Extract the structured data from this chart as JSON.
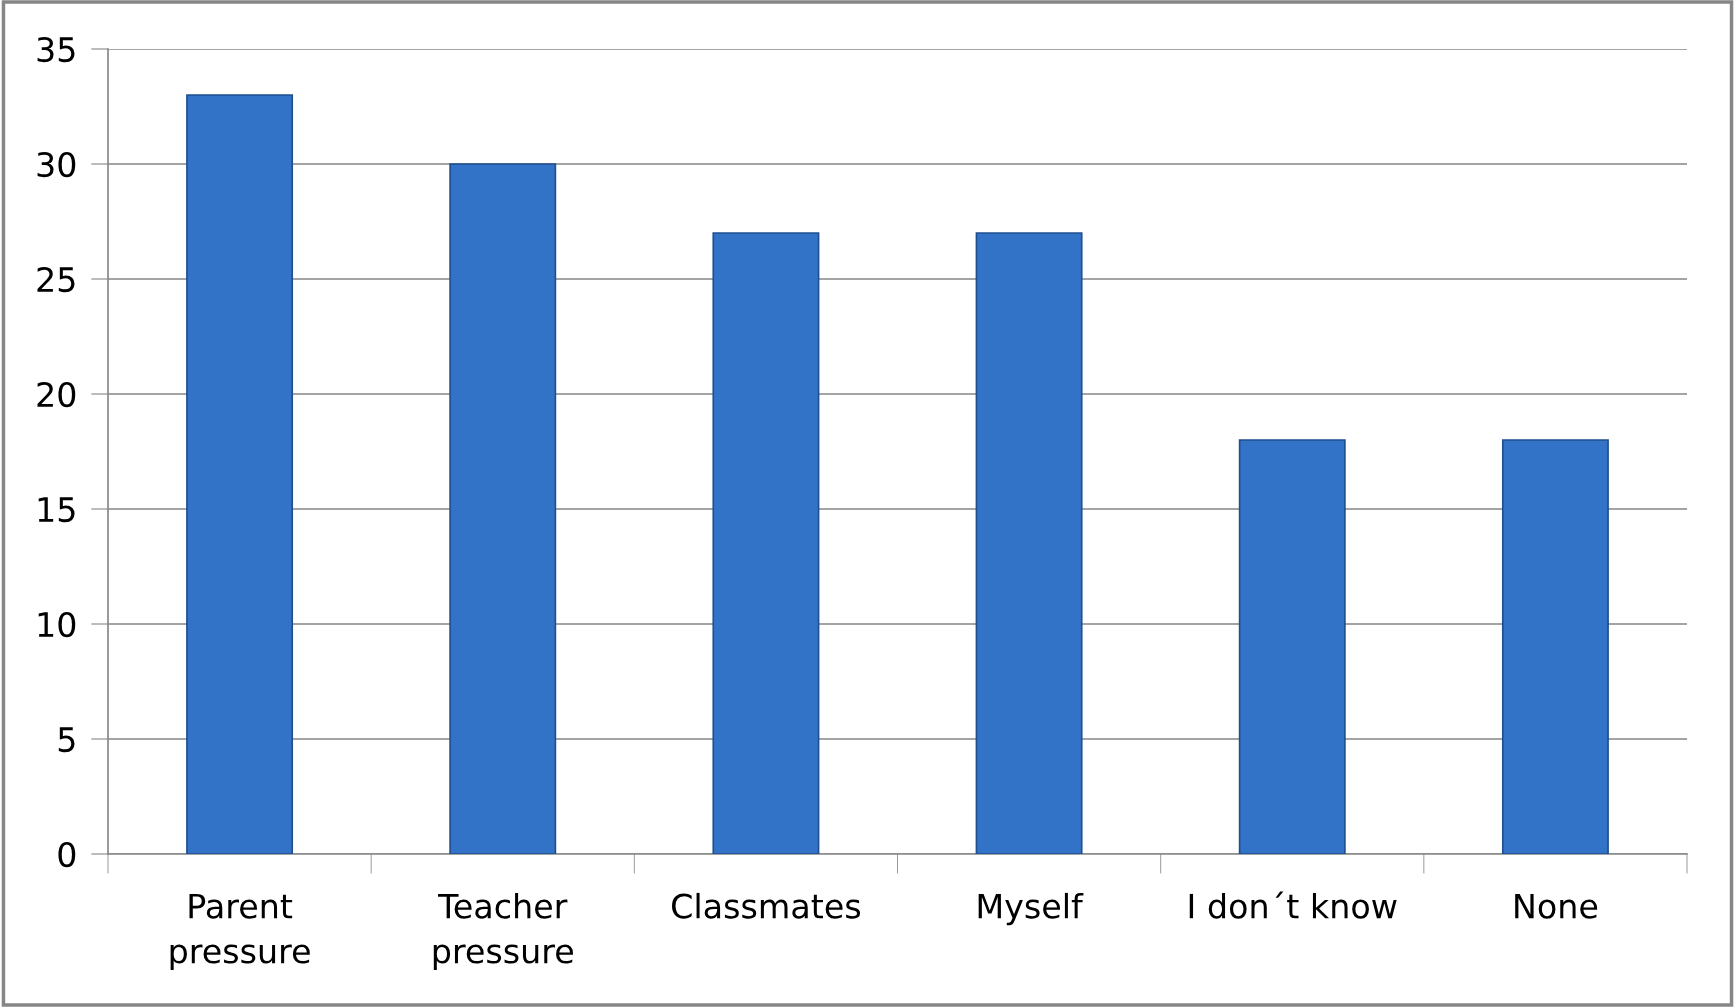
{
  "chart_data": {
    "type": "bar",
    "categories": [
      "Parent\npressure",
      "Teacher\npressure",
      "Classmates",
      "Myself",
      "I don´t know",
      "None"
    ],
    "values": [
      33,
      30,
      27,
      27,
      18,
      18
    ],
    "color": "#3273c8",
    "ylim": [
      0,
      35
    ],
    "yticks": [
      0,
      5,
      10,
      15,
      20,
      25,
      30,
      35
    ],
    "grid": "y",
    "legend": false
  }
}
